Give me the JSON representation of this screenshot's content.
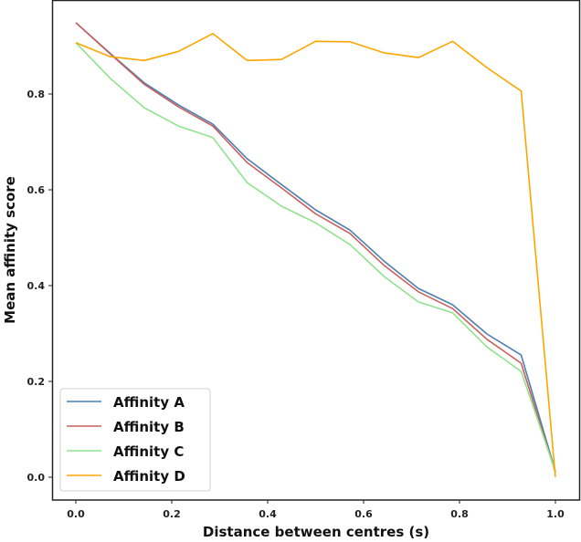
{
  "chart_data": {
    "type": "line",
    "title": "",
    "xlabel": "Distance between centres (s)",
    "ylabel": "Mean affinity score",
    "xlim": [
      -0.05,
      1.05
    ],
    "ylim": [
      -0.048,
      1.0
    ],
    "grid": false,
    "legend_position": "lower left",
    "x_ticks": [
      0.0,
      0.2,
      0.4,
      0.6,
      0.8,
      1.0
    ],
    "x_tick_labels": [
      "0.0",
      "0.2",
      "0.4",
      "0.6",
      "0.8",
      "1.0"
    ],
    "y_ticks": [
      0.0,
      0.2,
      0.4,
      0.6,
      0.8
    ],
    "y_tick_labels": [
      "0.0",
      "0.2",
      "0.4",
      "0.6",
      "0.8"
    ],
    "x": [
      0.0,
      0.0714,
      0.1429,
      0.2143,
      0.2857,
      0.3571,
      0.4286,
      0.5,
      0.5714,
      0.6429,
      0.7143,
      0.7857,
      0.8571,
      0.9286,
      1.0
    ],
    "series": [
      {
        "name": "Affinity A",
        "color": "#4c7fb3",
        "values": [
          0.949,
          0.885,
          0.823,
          0.777,
          0.737,
          0.665,
          0.611,
          0.558,
          0.516,
          0.451,
          0.394,
          0.36,
          0.299,
          0.255,
          0.012
        ]
      },
      {
        "name": "Affinity B",
        "color": "#c9605e",
        "values": [
          0.949,
          0.884,
          0.82,
          0.773,
          0.733,
          0.657,
          0.604,
          0.55,
          0.509,
          0.442,
          0.387,
          0.352,
          0.288,
          0.238,
          0.01
        ]
      },
      {
        "name": "Affinity C",
        "color": "#8fe38b",
        "values": [
          0.907,
          0.833,
          0.771,
          0.733,
          0.709,
          0.615,
          0.566,
          0.531,
          0.486,
          0.419,
          0.366,
          0.343,
          0.272,
          0.221,
          0.012
        ]
      },
      {
        "name": "Affinity D",
        "color": "#ffa500",
        "values": [
          0.907,
          0.878,
          0.87,
          0.889,
          0.926,
          0.87,
          0.872,
          0.91,
          0.909,
          0.886,
          0.876,
          0.91,
          0.855,
          0.806,
          0.0
        ]
      }
    ]
  },
  "legend": {
    "items": [
      {
        "label": "Affinity A",
        "color": "#4c7fb3"
      },
      {
        "label": "Affinity B",
        "color": "#c9605e"
      },
      {
        "label": "Affinity C",
        "color": "#8fe38b"
      },
      {
        "label": "Affinity D",
        "color": "#ffa500"
      }
    ]
  },
  "axes": {
    "xlabel": "Distance between centres (s)",
    "ylabel": "Mean affinity score"
  }
}
